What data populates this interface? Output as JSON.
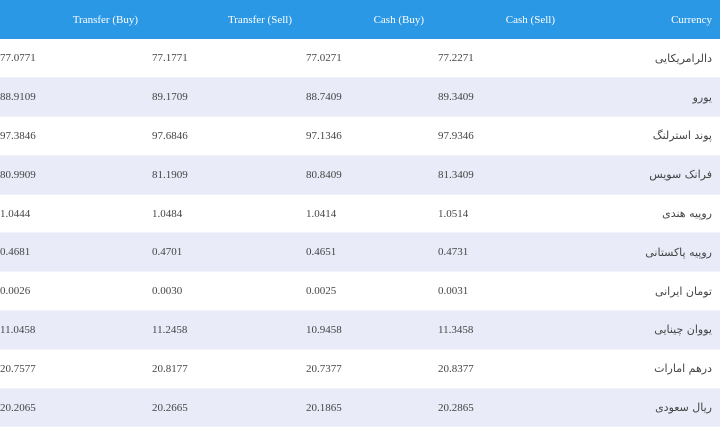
{
  "columns": [
    "Transfer (Buy)",
    "Transfer (Sell)",
    "Cash (Buy)",
    "Cash (Sell)",
    "Currency"
  ],
  "colors": {
    "header_bg": "#2b98e5",
    "stripe_bg": "#e9ebf8"
  },
  "rows": [
    {
      "transfer_buy": "77.0771",
      "transfer_sell": "77.1771",
      "cash_buy": "77.0271",
      "cash_sell": "77.2271",
      "currency": "دالرامریکایی"
    },
    {
      "transfer_buy": "88.9109",
      "transfer_sell": "89.1709",
      "cash_buy": "88.7409",
      "cash_sell": "89.3409",
      "currency": "یورو"
    },
    {
      "transfer_buy": "97.3846",
      "transfer_sell": "97.6846",
      "cash_buy": "97.1346",
      "cash_sell": "97.9346",
      "currency": "پوند استرلنگ"
    },
    {
      "transfer_buy": "80.9909",
      "transfer_sell": "81.1909",
      "cash_buy": "80.8409",
      "cash_sell": "81.3409",
      "currency": "فرانک سویس"
    },
    {
      "transfer_buy": "1.0444",
      "transfer_sell": "1.0484",
      "cash_buy": "1.0414",
      "cash_sell": "1.0514",
      "currency": "روپیه هندی"
    },
    {
      "transfer_buy": "0.4681",
      "transfer_sell": "0.4701",
      "cash_buy": "0.4651",
      "cash_sell": "0.4731",
      "currency": "روپیه پاکستانی"
    },
    {
      "transfer_buy": "0.0026",
      "transfer_sell": "0.0030",
      "cash_buy": "0.0025",
      "cash_sell": "0.0031",
      "currency": "تومان ایرانی"
    },
    {
      "transfer_buy": "11.0458",
      "transfer_sell": "11.2458",
      "cash_buy": "10.9458",
      "cash_sell": "11.3458",
      "currency": "یووان چینایی"
    },
    {
      "transfer_buy": "20.7577",
      "transfer_sell": "20.8177",
      "cash_buy": "20.7377",
      "cash_sell": "20.8377",
      "currency": "درهم امارات"
    },
    {
      "transfer_buy": "20.2065",
      "transfer_sell": "20.2665",
      "cash_buy": "20.1865",
      "cash_sell": "20.2865",
      "currency": "ریال سعودی"
    }
  ]
}
